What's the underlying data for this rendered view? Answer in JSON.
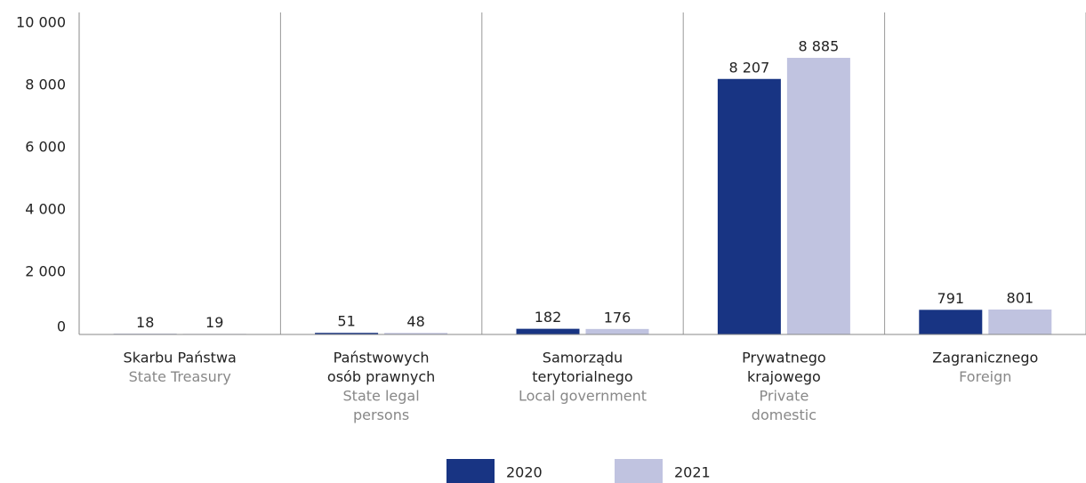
{
  "chart_data": {
    "type": "bar",
    "categories": [
      [
        "Skarbu Państwa"
      ],
      [
        "Państwowych",
        "osób prawnych"
      ],
      [
        "Samorządu",
        "terytorialnego"
      ],
      [
        "Prywatnego",
        "krajowego"
      ],
      [
        "Zagranicznego"
      ]
    ],
    "categories_en": [
      [
        "State Treasury"
      ],
      [
        "State legal",
        "persons"
      ],
      [
        "Local government"
      ],
      [
        "Private",
        "domestic"
      ],
      [
        "Foreign"
      ]
    ],
    "series": [
      {
        "name": "2020",
        "color": "#183483",
        "values": [
          18,
          51,
          182,
          8207,
          791
        ],
        "value_labels": [
          "18",
          "51",
          "182",
          "8 207",
          "791"
        ]
      },
      {
        "name": "2021",
        "color": "#c0c3e0",
        "values": [
          19,
          48,
          176,
          8885,
          801
        ],
        "value_labels": [
          "19",
          "48",
          "176",
          "8 885",
          "801"
        ]
      }
    ],
    "ylim": [
      0,
      10000
    ],
    "yticks": [
      0,
      {
        "value": 2000,
        "label": "2 000"
      },
      {
        "value": 4000,
        "label": "4 000"
      },
      {
        "value": 6000,
        "label": "6 000"
      },
      {
        "value": 8000,
        "label": "8 000"
      },
      {
        "value": 10000,
        "label": "10 000"
      }
    ],
    "grid": false
  }
}
